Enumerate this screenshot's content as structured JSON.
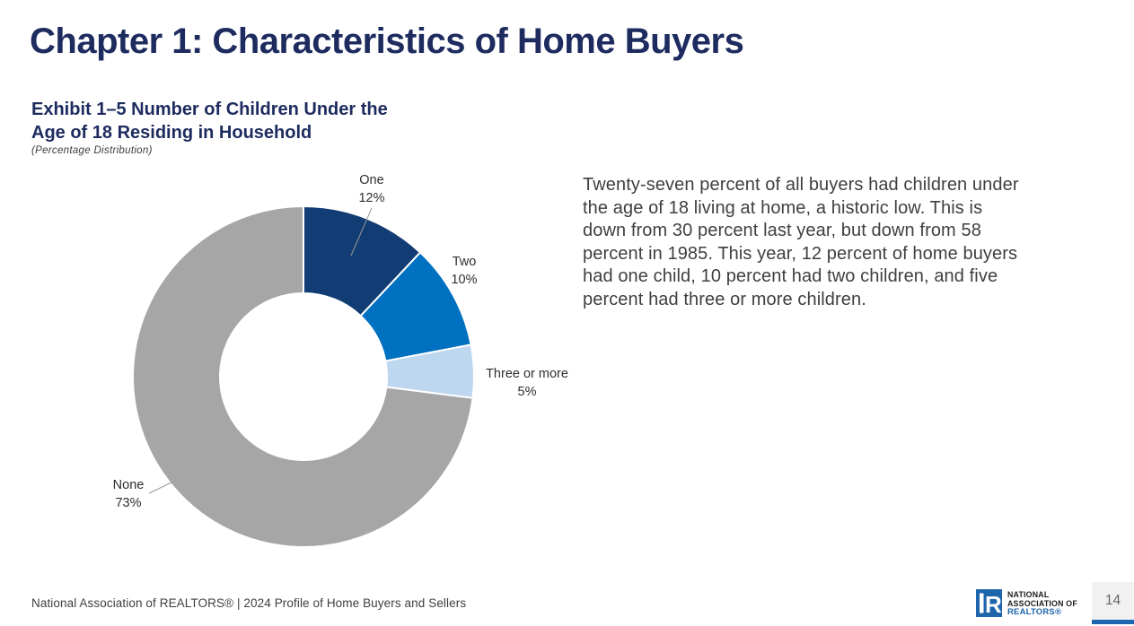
{
  "header": {
    "title": "Chapter 1: Characteristics of Home Buyers"
  },
  "exhibit": {
    "title_line1": "Exhibit 1–5 Number of Children Under the",
    "title_line2": "Age of 18 Residing in Household",
    "note": "(Percentage Distribution)"
  },
  "body_text": "Twenty-seven percent of all buyers had children under the age of 18 living at home, a historic low. This is down from 30 percent last year, but down from 58 percent in 1985. This year, 12 percent of home buyers had one child, 10 percent had two children, and five percent had three or more children.",
  "chart_data": {
    "type": "pie",
    "variant": "donut",
    "title": "Exhibit 1–5 Number of Children Under the Age of 18 Residing in Household",
    "subtitle": "(Percentage Distribution)",
    "unit": "percent",
    "start_angle_deg": 0,
    "direction": "clockwise",
    "inner_radius_ratio": 0.49,
    "slices": [
      {
        "label": "One",
        "value": 12,
        "display": "12%",
        "color": "#123c74"
      },
      {
        "label": "Two",
        "value": 10,
        "display": "10%",
        "color": "#0070c0"
      },
      {
        "label": "Three or more",
        "value": 5,
        "display": "5%",
        "color": "#bdd7ee"
      },
      {
        "label": "None",
        "value": 73,
        "display": "73%",
        "color": "#a6a6a6"
      }
    ],
    "legend": "none",
    "labels_position": "outside-with-leader-lines"
  },
  "footer": {
    "source": "National Association of REALTORS® | 2024 Profile of Home Buyers and Sellers",
    "logo": {
      "line1": "NATIONAL",
      "line2": "ASSOCIATION OF",
      "line3": "REALTORS®",
      "mark_letter": "R"
    },
    "page_number": "14"
  },
  "colors": {
    "title_navy": "#1d2b5f",
    "body_text": "#3f3f3f",
    "label_text": "#2e2e2e",
    "leader_line": "#999999",
    "logo_blue": "#1e65ac",
    "page_box_bg": "#f1f1f1",
    "page_box_bar": "#1a67b0",
    "page_number_text": "#666666"
  }
}
